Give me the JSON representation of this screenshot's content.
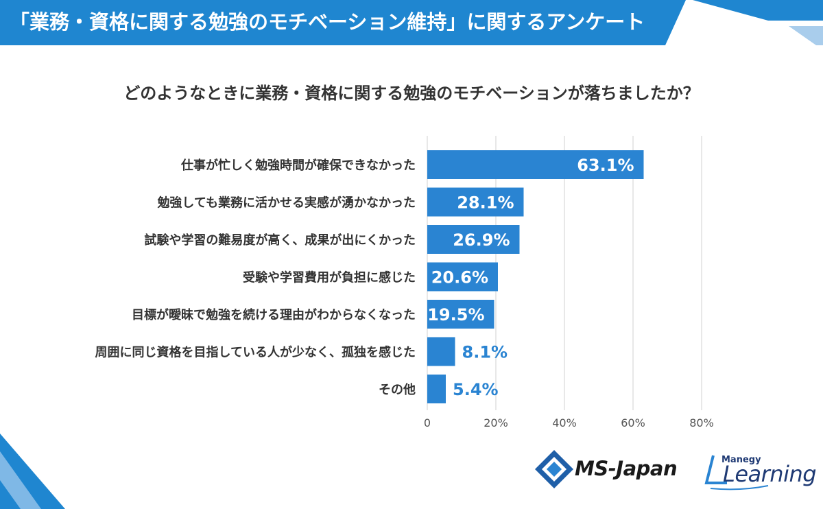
{
  "header": {
    "title": "「業務・資格に関する勉強のモチベーション維持」に関するアンケート"
  },
  "question": "どのようなときに業務・資格に関する勉強のモチベーションが落ちましたか？",
  "colors": {
    "header_blue": "#1f86d0",
    "bar_blue": "#2a84d2",
    "label_on_bar": "#ffffff",
    "label_off_bar": "#2a84d2",
    "grid": "#d9d9d9"
  },
  "chart_data": {
    "type": "bar",
    "orientation": "horizontal",
    "categories": [
      "仕事が忙しく勉強時間が確保できなかった",
      "勉強しても業務に活かせる実感が湧かなかった",
      "試験や学習の難易度が高く、成果が出にくかった",
      "受験や学習費用が負担に感じた",
      "目標が曖昧で勉強を続ける理由がわからなくなった",
      "周囲に同じ資格を目指している人が少なく、孤独を感じた",
      "その他"
    ],
    "values": [
      63.1,
      28.1,
      26.9,
      20.6,
      19.5,
      8.1,
      5.4
    ],
    "value_labels": [
      "63.1%",
      "28.1%",
      "26.9%",
      "20.6%",
      "19.5%",
      "8.1%",
      "5.4%"
    ],
    "xlim": [
      0,
      80
    ],
    "ticks": [
      0,
      20,
      40,
      60,
      80
    ],
    "tick_labels": [
      "0",
      "20%",
      "40%",
      "60%",
      "80%"
    ],
    "grid": true
  },
  "logos": {
    "ms_japan": "MS-Japan",
    "manegy": "Manegy",
    "learning": "Learning"
  }
}
